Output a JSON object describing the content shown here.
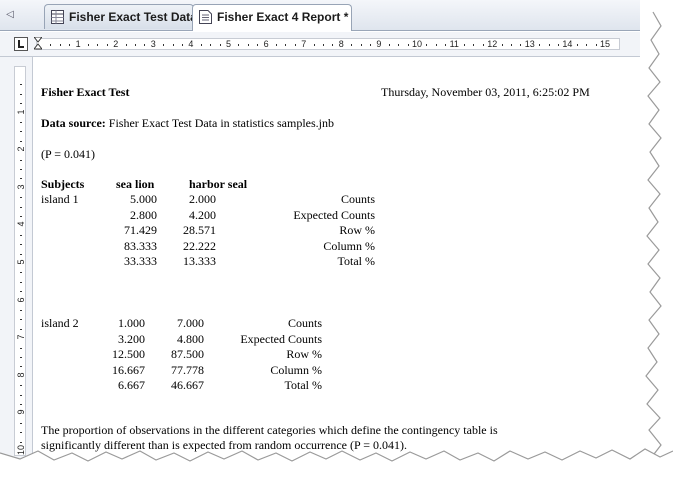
{
  "tabs": [
    {
      "label": "Fisher Exact Test Data"
    },
    {
      "label": "Fisher Exact 4 Report *"
    }
  ],
  "ruler": {
    "h_numbers": [
      "1",
      "2",
      "3",
      "4",
      "5",
      "6",
      "7",
      "8",
      "9",
      "10",
      "11",
      "12",
      "13",
      "14",
      "15"
    ],
    "v_numbers": [
      "1",
      "2",
      "3",
      "4",
      "5",
      "6",
      "7",
      "8",
      "9",
      "10"
    ]
  },
  "report": {
    "title": "Fisher Exact Test",
    "timestamp": "Thursday, November 03, 2011, 6:25:02 PM",
    "data_source_label": "Data source:",
    "data_source_value": "Fisher Exact Test Data in statistics samples.jnb",
    "p_value": "(P = 0.041)",
    "headers": {
      "subjects": "Subjects",
      "col1": "sea lion",
      "col2": "harbor seal"
    },
    "group1": {
      "name": "island 1",
      "rows": [
        {
          "a": "5.000",
          "b": "2.000",
          "label": "Counts"
        },
        {
          "a": "2.800",
          "b": "4.200",
          "label": "Expected Counts"
        },
        {
          "a": "71.429",
          "b": "28.571",
          "label": "Row %"
        },
        {
          "a": "83.333",
          "b": "22.222",
          "label": "Column %"
        },
        {
          "a": "33.333",
          "b": "13.333",
          "label": "Total %"
        }
      ]
    },
    "group2": {
      "name": "island 2",
      "rows": [
        {
          "a": "1.000",
          "b": "7.000",
          "label": "Counts"
        },
        {
          "a": "3.200",
          "b": "4.800",
          "label": "Expected Counts"
        },
        {
          "a": "12.500",
          "b": "87.500",
          "label": "Row %"
        },
        {
          "a": "16.667",
          "b": "77.778",
          "label": "Column %"
        },
        {
          "a": "6.667",
          "b": "46.667",
          "label": "Total %"
        }
      ]
    },
    "conclusion_line1": "The proportion of observations in the different categories which define the contingency table is",
    "conclusion_line2": "significantly different than is expected from random occurrence  (P = 0.041)."
  }
}
